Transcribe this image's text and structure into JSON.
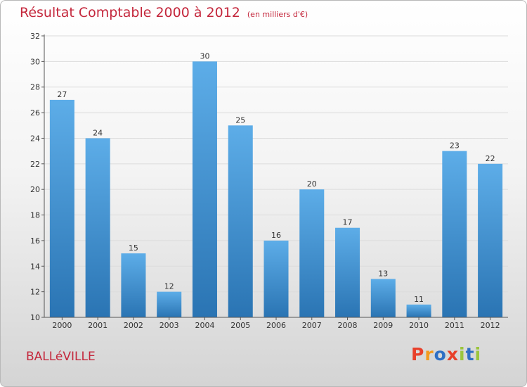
{
  "header": {
    "title": "Résultat Comptable 2000 à 2012",
    "unit": "(en milliers d'€)"
  },
  "footer": {
    "commune": "BALLéVILLE",
    "logo_text": "Proxiti",
    "logo_colors": [
      "#e8402a",
      "#f39a1e",
      "#2f6fc4",
      "#e8402a",
      "#9bc53d",
      "#2f6fc4",
      "#9bc53d"
    ]
  },
  "colors": {
    "title": "#c4273c",
    "bar_top": "#5dade8",
    "bar_bottom": "#2a74b3"
  },
  "chart_data": {
    "type": "bar",
    "title": "Résultat Comptable 2000 à 2012",
    "subtitle": "(en milliers d'€)",
    "xlabel": "",
    "ylabel": "",
    "categories": [
      "2000",
      "2001",
      "2002",
      "2003",
      "2004",
      "2005",
      "2006",
      "2007",
      "2008",
      "2009",
      "2010",
      "2011",
      "2012"
    ],
    "values": [
      27,
      24,
      15,
      12,
      30,
      25,
      16,
      20,
      17,
      13,
      11,
      23,
      22
    ],
    "ylim": [
      10,
      32
    ],
    "yticks": [
      10,
      12,
      14,
      16,
      18,
      20,
      22,
      24,
      26,
      28,
      30,
      32
    ],
    "grid": true
  }
}
